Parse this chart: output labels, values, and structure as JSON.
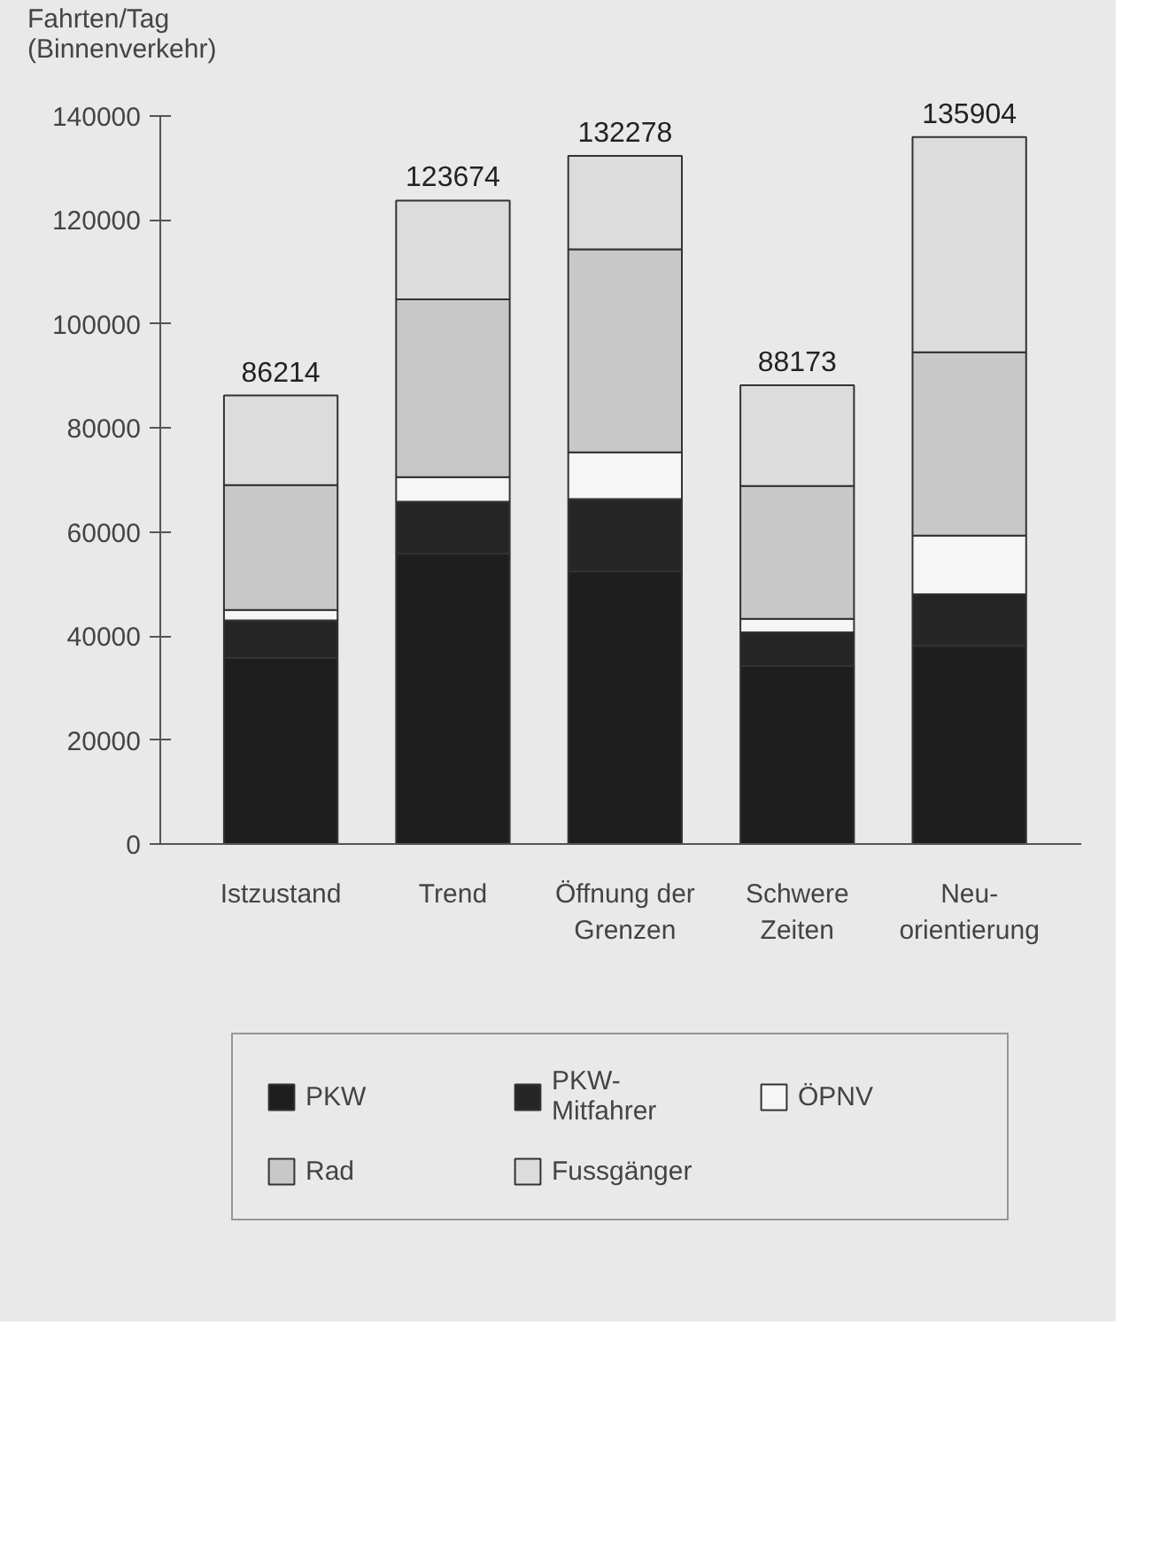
{
  "chart_data": {
    "type": "bar",
    "stacked": true,
    "ylabel": "Fahrten/Tag\n(Binnenverkehr)",
    "categories": [
      "Istzustand",
      "Trend",
      "Öffnung der\nGrenzen",
      "Schwere\nZeiten",
      "Neu-\norientierung"
    ],
    "series": [
      {
        "name": "PKW",
        "color": "#1e1e1e",
        "values": [
          35800,
          55800,
          52400,
          34200,
          38100
        ]
      },
      {
        "name": "PKW-\nMitfahrer",
        "color": "#262626",
        "values": [
          7200,
          10000,
          13900,
          6500,
          9900
        ]
      },
      {
        "name": "ÖPNV",
        "color": "#f6f6f6",
        "values": [
          2000,
          4700,
          9000,
          2600,
          11300
        ]
      },
      {
        "name": "Rad",
        "color": "#c8c8c8",
        "values": [
          24000,
          34200,
          39000,
          25500,
          35200
        ]
      },
      {
        "name": "Fussgänger",
        "color": "#dcdcdc",
        "values": [
          17214,
          18974,
          17978,
          19373,
          41404
        ]
      }
    ],
    "totals": [
      "86214",
      "123674",
      "132278",
      "88173",
      "135904"
    ],
    "ylim": [
      0,
      140000
    ],
    "yticks": [
      0,
      20000,
      40000,
      60000,
      80000,
      100000,
      120000,
      140000
    ],
    "legend": "bottom"
  }
}
